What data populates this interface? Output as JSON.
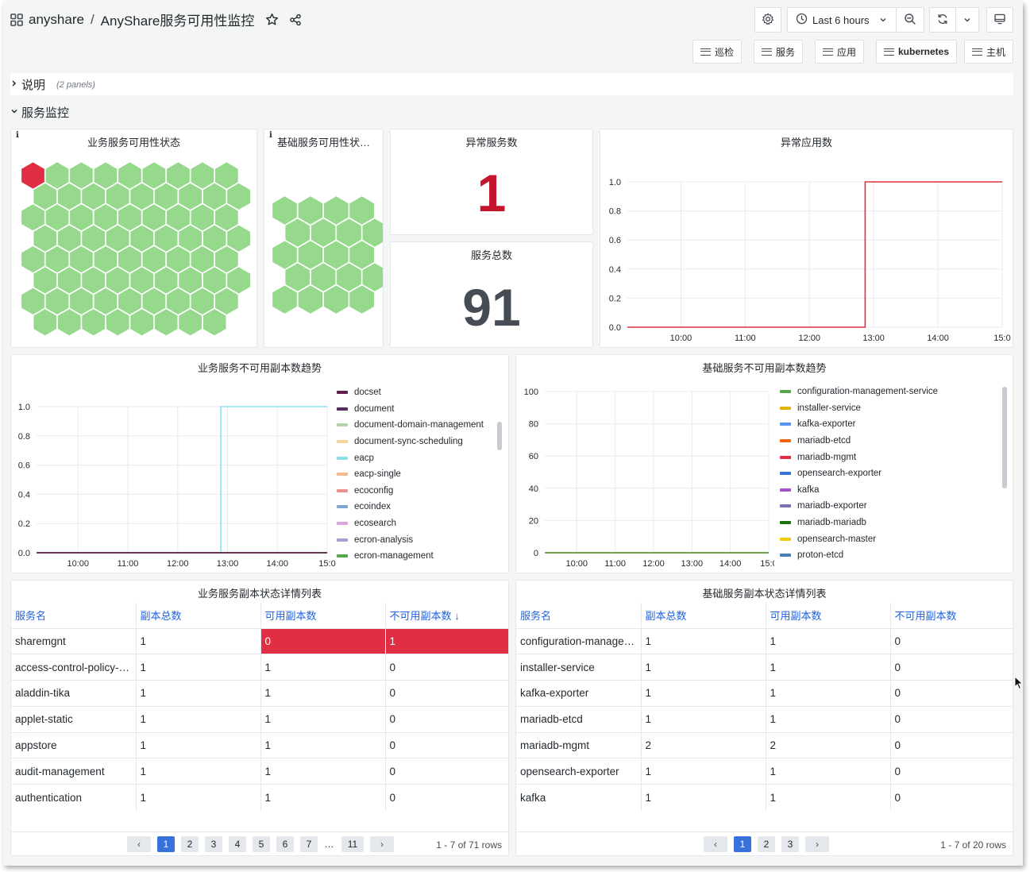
{
  "header": {
    "app": "anyshare",
    "separator": "/",
    "dashboard_title": "AnyShare服务可用性监控",
    "time_range": "Last 6 hours"
  },
  "links": [
    "巡检",
    "服务",
    "应用",
    "kubernetes",
    "主机"
  ],
  "rows": [
    {
      "title": "说明",
      "sub": "(2 panels)",
      "collapsed": true
    },
    {
      "title": "服务监控",
      "collapsed": false
    }
  ],
  "panels": {
    "biz_hex": {
      "title": "业务服务可用性状态",
      "info": "i",
      "total": 71,
      "unhealthy": 1,
      "ok_color": "#96d98d",
      "bad_color": "#e02f44"
    },
    "base_hex": {
      "title": "基础服务可用性状…",
      "info": "i",
      "total": 20,
      "unhealthy": 0
    },
    "abnormal_services": {
      "title": "异常服务数",
      "value": "1",
      "color": "#c4162a"
    },
    "total_services": {
      "title": "服务总数",
      "value": "91",
      "color": "#464c54"
    },
    "abnormal_apps": {
      "title": "异常应用数"
    },
    "biz_trend": {
      "title": "业务服务不可用副本数趋势"
    },
    "base_trend": {
      "title": "基础服务不可用副本数趋势"
    }
  },
  "chart_data": [
    {
      "type": "line",
      "panel": "异常应用数",
      "x": [
        "09:10",
        "12:50",
        "12:52",
        "15:00"
      ],
      "series": [
        {
          "values": [
            0,
            0,
            1,
            1
          ],
          "color": "#e02f44"
        }
      ],
      "x_ticks": [
        "10:00",
        "11:00",
        "12:00",
        "13:00",
        "14:00",
        "15:0"
      ],
      "y_ticks": [
        "0.0",
        "0.2",
        "0.4",
        "0.6",
        "0.8",
        "1.0"
      ],
      "xlim": [
        "09:10",
        "15:00"
      ],
      "ylim": [
        0,
        1
      ],
      "grid": true
    },
    {
      "type": "line",
      "panel": "业务服务不可用副本数趋势",
      "x": [
        "09:10",
        "12:51",
        "12:52",
        "15:00"
      ],
      "series": [
        {
          "name": "docset",
          "color": "#5f1e4f",
          "values": [
            0,
            0,
            0,
            0
          ]
        },
        {
          "name": "document",
          "color": "#552d5e",
          "values": [
            0,
            0,
            0,
            0
          ]
        },
        {
          "name": "document-domain-management",
          "color": "#b1d8a4",
          "values": [
            0,
            0,
            0,
            0
          ]
        },
        {
          "name": "document-sync-scheduling",
          "color": "#f6d39a",
          "values": [
            0,
            0,
            0,
            0
          ]
        },
        {
          "name": "eacp",
          "color": "#8ae0ee",
          "values": [
            0,
            0,
            1,
            1
          ]
        },
        {
          "name": "eacp-single",
          "color": "#f8b98a",
          "values": [
            0,
            0,
            0,
            0
          ]
        },
        {
          "name": "ecoconfig",
          "color": "#f08e8e",
          "values": [
            0,
            0,
            0,
            0
          ]
        },
        {
          "name": "ecoindex",
          "color": "#7ea6d0",
          "values": [
            0,
            0,
            0,
            0
          ]
        },
        {
          "name": "ecosearch",
          "color": "#d7a7d9",
          "values": [
            0,
            0,
            0,
            0
          ]
        },
        {
          "name": "ecron-analysis",
          "color": "#b29ad6",
          "values": [
            0,
            0,
            0,
            0
          ]
        },
        {
          "name": "ecron-management",
          "color": "#56a64b",
          "values": [
            0,
            0,
            0,
            0
          ]
        }
      ],
      "x_ticks": [
        "10:00",
        "11:00",
        "12:00",
        "13:00",
        "14:00",
        "15:0"
      ],
      "y_ticks": [
        "0.0",
        "0.2",
        "0.4",
        "0.6",
        "0.8",
        "1.0"
      ],
      "xlim": [
        "09:10",
        "15:00"
      ],
      "ylim": [
        0,
        1
      ],
      "grid": true,
      "legend": "right"
    },
    {
      "type": "line",
      "panel": "基础服务不可用副本数趋势",
      "x": [
        "09:10",
        "15:00"
      ],
      "series": [
        {
          "name": "configuration-management-service",
          "color": "#56a64b",
          "values": [
            0,
            0
          ]
        },
        {
          "name": "installer-service",
          "color": "#e0b400",
          "values": [
            0,
            0
          ]
        },
        {
          "name": "kafka-exporter",
          "color": "#5794f2",
          "values": [
            0,
            0
          ]
        },
        {
          "name": "mariadb-etcd",
          "color": "#fa6400",
          "values": [
            0,
            0
          ]
        },
        {
          "name": "mariadb-mgmt",
          "color": "#e02f44",
          "values": [
            0,
            0
          ]
        },
        {
          "name": "opensearch-exporter",
          "color": "#3274d9",
          "values": [
            0,
            0
          ]
        },
        {
          "name": "kafka",
          "color": "#a352cc",
          "values": [
            0,
            0
          ]
        },
        {
          "name": "mariadb-exporter",
          "color": "#806eb7",
          "values": [
            0,
            0
          ]
        },
        {
          "name": "mariadb-mariadb",
          "color": "#19730e",
          "values": [
            0,
            0
          ]
        },
        {
          "name": "opensearch-master",
          "color": "#f2cc0c",
          "values": [
            0,
            0
          ]
        },
        {
          "name": "proton-etcd",
          "color": "#447ebc",
          "values": [
            0,
            0
          ]
        }
      ],
      "x_ticks": [
        "10:00",
        "11:00",
        "12:00",
        "13:00",
        "14:00",
        "15:0"
      ],
      "y_ticks": [
        "0",
        "20",
        "40",
        "60",
        "80",
        "100"
      ],
      "xlim": [
        "09:10",
        "15:00"
      ],
      "ylim": [
        0,
        100
      ],
      "grid": true,
      "legend": "right"
    }
  ],
  "tables": {
    "biz": {
      "title": "业务服务副本状态详情列表",
      "columns": [
        "服务名",
        "副本总数",
        "可用副本数",
        "不可用副本数"
      ],
      "sort_arrow": "↓",
      "rows": [
        [
          "sharemgnt",
          "1",
          "0",
          "1"
        ],
        [
          "access-control-policy-management",
          "1",
          "1",
          "0"
        ],
        [
          "aladdin-tika",
          "1",
          "1",
          "0"
        ],
        [
          "applet-static",
          "1",
          "1",
          "0"
        ],
        [
          "appstore",
          "1",
          "1",
          "0"
        ],
        [
          "audit-management",
          "1",
          "1",
          "0"
        ],
        [
          "authentication",
          "1",
          "1",
          "0"
        ]
      ],
      "pages": [
        "1",
        "2",
        "3",
        "4",
        "5",
        "6",
        "7",
        "…",
        "11"
      ],
      "rows_info": "1 - 7 of 71 rows"
    },
    "base": {
      "title": "基础服务副本状态详情列表",
      "columns": [
        "服务名",
        "副本总数",
        "可用副本数",
        "不可用副本数"
      ],
      "rows": [
        [
          "configuration-management-service",
          "1",
          "1",
          "0"
        ],
        [
          "installer-service",
          "1",
          "1",
          "0"
        ],
        [
          "kafka-exporter",
          "1",
          "1",
          "0"
        ],
        [
          "mariadb-etcd",
          "1",
          "1",
          "0"
        ],
        [
          "mariadb-mgmt",
          "2",
          "2",
          "0"
        ],
        [
          "opensearch-exporter",
          "1",
          "1",
          "0"
        ],
        [
          "kafka",
          "1",
          "1",
          "0"
        ]
      ],
      "pages": [
        "1",
        "2",
        "3"
      ],
      "rows_info": "1 - 7 of 20 rows"
    }
  },
  "icons": [
    "apps-grid-icon",
    "star-icon",
    "share-icon",
    "gear-icon",
    "clock-icon",
    "chevron-down-icon",
    "zoom-out-icon",
    "refresh-icon",
    "tv-icon",
    "hamburger-icon"
  ]
}
